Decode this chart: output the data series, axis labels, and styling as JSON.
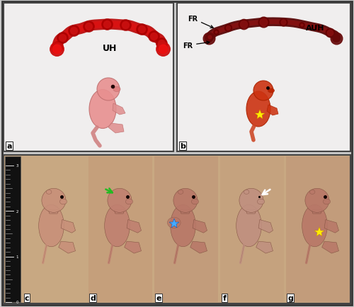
{
  "figure_width": 5.0,
  "figure_height": 4.35,
  "dpi": 100,
  "bg_color": "#c8c8c8",
  "outer_border_color": "#222222",
  "outer_border_lw": 1.5,
  "panel_border_lw": 1.2,
  "label_fontsize": 8,
  "annotation_fontsize": 7,
  "panel_a_label": "a",
  "panel_b_label": "b",
  "panel_c_label": "c",
  "panel_d_label": "d",
  "panel_e_label": "e",
  "panel_f_label": "f",
  "panel_g_label": "g",
  "uh_text": "UH",
  "auh_text": "AUH",
  "fr_text": "FR",
  "green_arrow_color": "#22bb22",
  "white_arrow_color": "#ffffff",
  "blue_star_color": "#44aaff",
  "yellow_star_color": "#ffee00",
  "top_panels_bg": "#f0eeee",
  "bottom_panel_bg": "#c8a882",
  "ruler_bg": "#111111",
  "fetus_a_color": "#e8a0a0",
  "fetus_b_color": "#cc4422",
  "uterus_a_color": "#cc1111",
  "uterus_b_color": "#771111",
  "fetus_body_color": "#c07858",
  "fetus_limb_color": "#b06848"
}
